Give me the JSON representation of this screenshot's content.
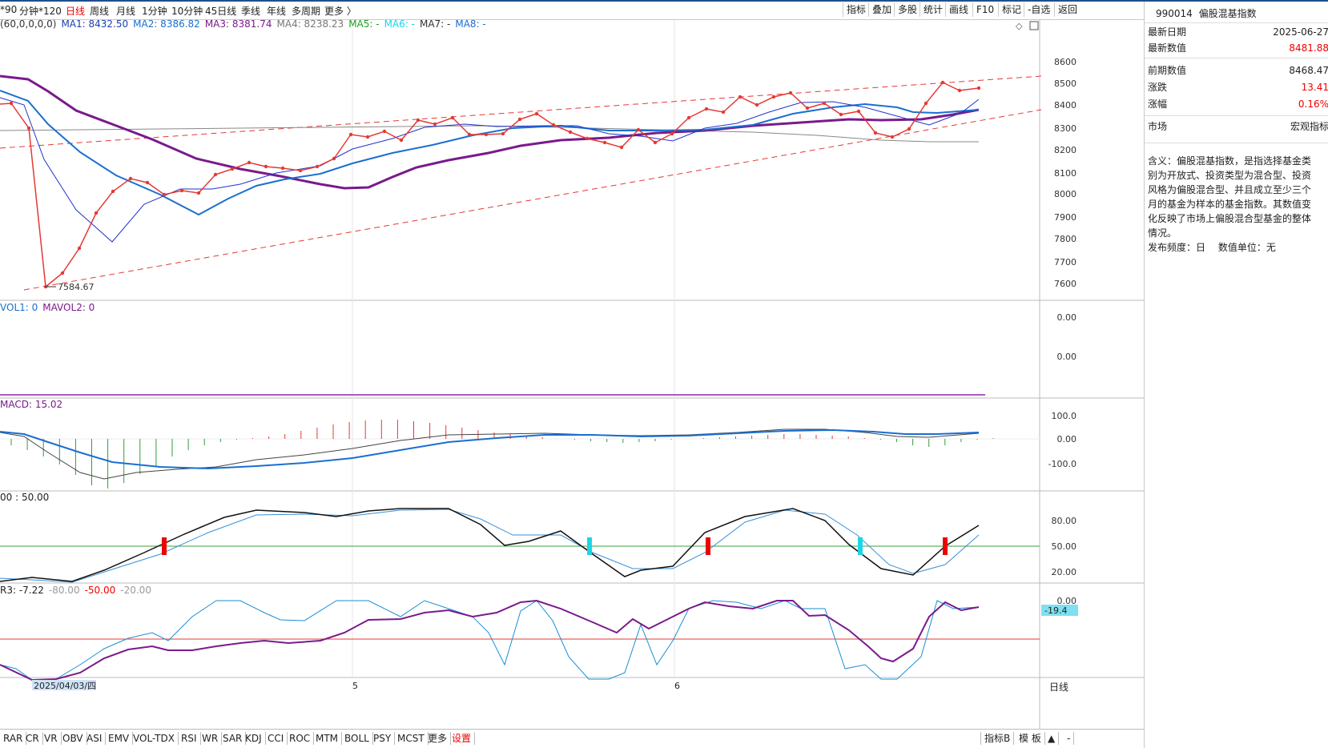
{
  "toolbar": {
    "periods": [
      "*90",
      "分钟*120",
      "日线",
      "周线",
      "月线",
      "1分钟",
      "10分钟",
      "45日线",
      "季线",
      "年线",
      "多周期",
      "更多 〉"
    ],
    "active_period": "日线",
    "tools": [
      "指标",
      "叠加",
      "多股",
      "统计",
      "画线",
      "F10",
      "标记",
      "-自选",
      "返回"
    ]
  },
  "main": {
    "legend": {
      "params": "(60,0,0,0,0)",
      "ma1": "MA1: 8432.50",
      "ma2": "MA2: 8386.82",
      "ma3": "MA3: 8381.74",
      "ma4": "MA4: 8238.23",
      "ma5": "MA5: -",
      "ma6": "MA6: -",
      "ma7": "MA7: -",
      "ma8": "MA8: -"
    },
    "y_labels": [
      "8600",
      "8500",
      "8400",
      "8300",
      "8200",
      "8100",
      "8000",
      "7900",
      "7800",
      "7700",
      "7600"
    ],
    "min_label": "7584.67"
  },
  "vol": {
    "legend1": "VOL1: 0",
    "legend2": "MAVOL2: 0",
    "y_labels": [
      "0.00",
      "0.00"
    ]
  },
  "macd": {
    "legend": "MACD: 15.02",
    "y_labels": [
      "100.0",
      "0.00",
      "-100.0"
    ]
  },
  "kdj": {
    "legend": "00 : 50.00",
    "y_labels": [
      "80.00",
      "50.00",
      "20.00"
    ]
  },
  "wr": {
    "legend_a": "R3: -7.22",
    "legend_b": "-80.00",
    "legend_c": "-50.00",
    "legend_d": "-20.00",
    "y_label": "0.00",
    "current_tag": "-19.4"
  },
  "xaxis": {
    "date_tag": "2025/04/03/四",
    "months": [
      "5",
      "6"
    ],
    "period_label": "日线"
  },
  "bottom_tabs": [
    "RAR",
    "CR",
    "VR",
    "OBV",
    "ASI",
    "EMV",
    "VOL-TDX",
    "RSI",
    "WR",
    "SAR",
    "KDJ",
    "CCI",
    "ROC",
    "MTM",
    "BOLL",
    "PSY",
    "MCST",
    "更多",
    "设置"
  ],
  "bottom_right": [
    "指标B",
    "模 板",
    "▲",
    "-"
  ],
  "side": {
    "code": "990014",
    "name": "偏股混基指数",
    "latest_date_label": "最新日期",
    "latest_date": "2025-06-27",
    "latest_value_label": "最新数值",
    "latest_value": "8481.88",
    "prev_value_label": "前期数值",
    "prev_value": "8468.47",
    "change_label": "涨跌",
    "change": "13.41",
    "pct_label": "涨幅",
    "pct": "0.16%",
    "market_label": "市场",
    "market": "宏观指标",
    "description": "含义：偏股混基指数，是指选择基金类别为开放式、投资类型为混合型、投资风格为偏股混合型、并且成立至少三个月的基金为样本的基金指数。其数值变化反映了市场上偏股混合型基金的整体情况。",
    "freq": "发布频度：日　 数值单位：无"
  },
  "colors": {
    "up": "#e00000",
    "ma1": "#1c3fb0",
    "ma3": "#7a1a8c",
    "ma4": "#777777",
    "ma2": "#1a6fd0",
    "cyan": "#1ad6e6"
  }
}
